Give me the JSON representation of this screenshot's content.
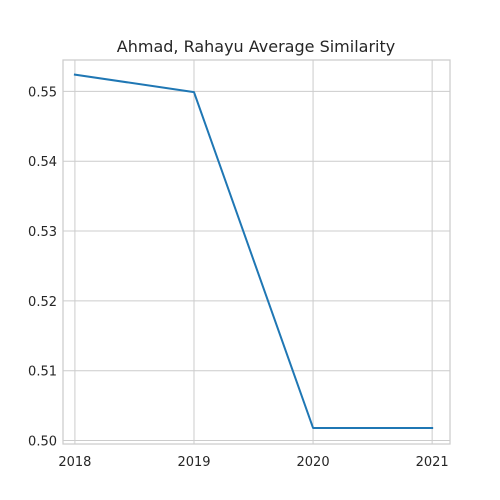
{
  "chart_data": {
    "type": "line",
    "title": "Ahmad, Rahayu Average Similarity",
    "xlabel": "",
    "ylabel": "",
    "x": [
      2018,
      2019,
      2020,
      2021
    ],
    "x_tick_labels": [
      "2018",
      "2019",
      "2020",
      "2021"
    ],
    "y_ticks": [
      0.5,
      0.51,
      0.52,
      0.53,
      0.54,
      0.55
    ],
    "y_tick_labels": [
      "0.50",
      "0.51",
      "0.52",
      "0.53",
      "0.54",
      "0.55"
    ],
    "ylim": [
      0.4995,
      0.5545
    ],
    "xlim": [
      2017.9,
      2021.15
    ],
    "series": [
      {
        "values": [
          0.5524,
          0.5499,
          0.5018,
          0.5018
        ],
        "color": "#1f77b4"
      }
    ],
    "grid": true,
    "legend": "none",
    "frame_color": "#cccccc",
    "grid_color": "#cccccc",
    "text_color": "#262626"
  }
}
